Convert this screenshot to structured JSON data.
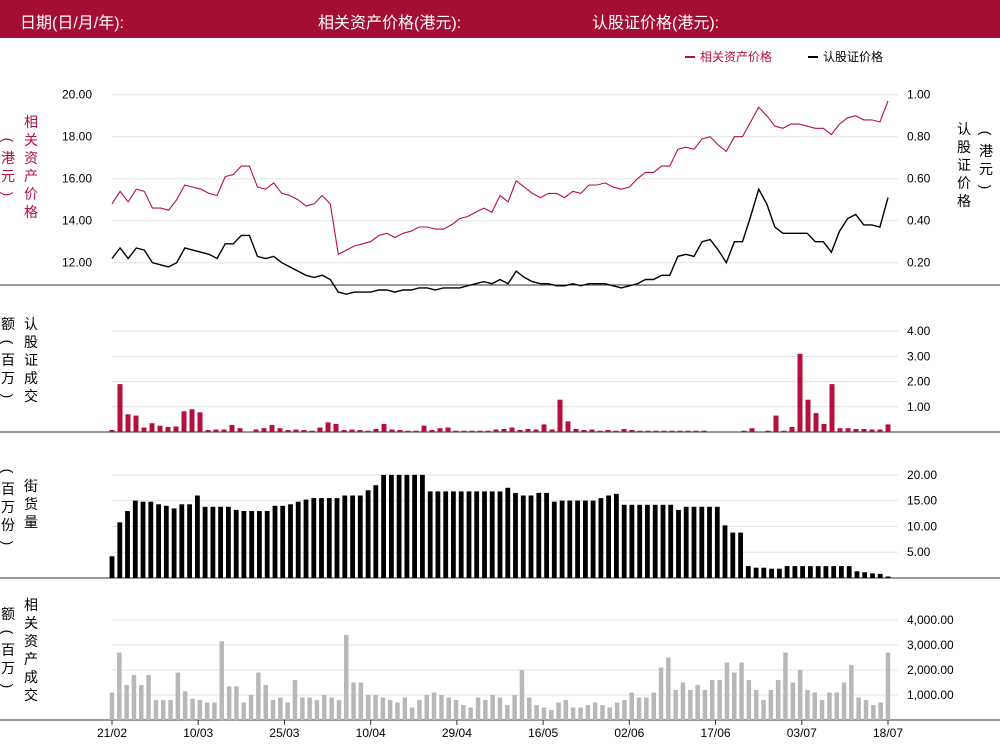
{
  "header": {
    "date_label": "日期(日/月/年):",
    "asset_price_label": "相关资产价格(港元):",
    "warrant_price_label": "认股证价格(港元):"
  },
  "colors": {
    "brand": "#a50d32",
    "asset": "#b5103c",
    "warrant": "#000000",
    "asset_turnover": "#b8b8b8",
    "grid": "#e3e3e3"
  },
  "chart_data": [
    {
      "type": "line",
      "legend_position": "top-right",
      "grid": true,
      "y_left_label": "相关资产价格（港元）",
      "y_right_label": "认股证价格（港元）",
      "y_left_ticks": [
        "12.00",
        "14.00",
        "16.00",
        "18.00",
        "20.00"
      ],
      "y_right_ticks": [
        "0.20",
        "0.40",
        "0.60",
        "0.80",
        "1.00"
      ],
      "y_left_range": [
        10.7,
        20.7
      ],
      "y_right_range": [
        0.07,
        1.07
      ],
      "series": [
        {
          "name": "相关资产价格",
          "axis": "left",
          "values": [
            14.8,
            15.4,
            14.9,
            15.5,
            15.4,
            14.6,
            14.6,
            14.5,
            15.0,
            15.7,
            15.6,
            15.5,
            15.3,
            15.2,
            16.1,
            16.2,
            16.6,
            16.6,
            15.6,
            15.5,
            15.8,
            15.3,
            15.2,
            15.0,
            14.7,
            14.8,
            15.2,
            14.8,
            12.4,
            12.6,
            12.8,
            12.9,
            13.0,
            13.3,
            13.4,
            13.2,
            13.4,
            13.5,
            13.7,
            13.7,
            13.6,
            13.6,
            13.8,
            14.1,
            14.2,
            14.4,
            14.6,
            14.4,
            15.2,
            14.9,
            15.9,
            15.6,
            15.3,
            15.1,
            15.3,
            15.3,
            15.1,
            15.4,
            15.3,
            15.7,
            15.7,
            15.8,
            15.6,
            15.5,
            15.6,
            16.0,
            16.3,
            16.3,
            16.6,
            16.6,
            17.4,
            17.5,
            17.4,
            17.9,
            18.0,
            17.6,
            17.3,
            18.0,
            18.0,
            18.7,
            19.4,
            19.0,
            18.5,
            18.4,
            18.6,
            18.6,
            18.5,
            18.4,
            18.4,
            18.1,
            18.6,
            18.9,
            19.0,
            18.8,
            18.8,
            18.7,
            19.7
          ]
        },
        {
          "name": "认股证价格",
          "axis": "right",
          "values": [
            0.22,
            0.27,
            0.22,
            0.27,
            0.26,
            0.2,
            0.19,
            0.18,
            0.2,
            0.27,
            0.26,
            0.25,
            0.24,
            0.22,
            0.29,
            0.29,
            0.33,
            0.33,
            0.23,
            0.22,
            0.23,
            0.2,
            0.18,
            0.16,
            0.14,
            0.13,
            0.14,
            0.12,
            0.06,
            0.05,
            0.06,
            0.06,
            0.06,
            0.07,
            0.07,
            0.06,
            0.07,
            0.07,
            0.08,
            0.08,
            0.07,
            0.08,
            0.08,
            0.08,
            0.09,
            0.1,
            0.11,
            0.1,
            0.12,
            0.1,
            0.16,
            0.13,
            0.11,
            0.1,
            0.1,
            0.09,
            0.09,
            0.1,
            0.09,
            0.1,
            0.1,
            0.1,
            0.09,
            0.08,
            0.09,
            0.1,
            0.12,
            0.12,
            0.14,
            0.14,
            0.23,
            0.24,
            0.23,
            0.3,
            0.31,
            0.26,
            0.2,
            0.3,
            0.3,
            0.42,
            0.55,
            0.48,
            0.37,
            0.34,
            0.34,
            0.34,
            0.34,
            0.3,
            0.3,
            0.25,
            0.35,
            0.41,
            0.43,
            0.38,
            0.38,
            0.37,
            0.51
          ]
        }
      ]
    },
    {
      "type": "bar",
      "ylabel": "认股证成交额（百万）",
      "y_ticks": [
        "1.00",
        "2.00",
        "3.00",
        "4.00"
      ],
      "y_range": [
        0,
        4.6
      ],
      "values": [
        0.08,
        1.9,
        0.7,
        0.65,
        0.18,
        0.35,
        0.25,
        0.2,
        0.22,
        0.82,
        0.9,
        0.78,
        0.08,
        0.1,
        0.1,
        0.28,
        0.15,
        0,
        0.1,
        0.15,
        0.28,
        0.15,
        0.08,
        0.1,
        0.08,
        0.05,
        0.18,
        0.38,
        0.32,
        0.08,
        0.1,
        0.08,
        0.05,
        0.12,
        0.32,
        0.1,
        0.08,
        0.05,
        0.05,
        0.25,
        0.08,
        0.15,
        0.18,
        0.05,
        0.05,
        0.05,
        0.05,
        0.05,
        0.1,
        0.12,
        0.18,
        0.08,
        0.12,
        0.1,
        0.3,
        0.1,
        1.28,
        0.42,
        0.12,
        0.08,
        0.1,
        0.05,
        0.08,
        0.05,
        0.12,
        0.08,
        0.05,
        0.05,
        0.05,
        0.05,
        0.05,
        0.05,
        0.05,
        0.05,
        0.05,
        0,
        0,
        0,
        0,
        0.05,
        0.15,
        0,
        0.05,
        0.65,
        0.05,
        0.2,
        3.1,
        1.28,
        0.75,
        0.32,
        1.9,
        0.15,
        0.15,
        0.12,
        0.12,
        0.1,
        0.1,
        0.3
      ]
    },
    {
      "type": "bar",
      "ylabel": "街货量（百万份）",
      "y_ticks": [
        "5.00",
        "10.00",
        "15.00",
        "20.00"
      ],
      "y_range": [
        0,
        22.3
      ],
      "values": [
        4.2,
        10.8,
        13.0,
        15.0,
        14.8,
        14.8,
        14.3,
        14.0,
        13.5,
        14.3,
        14.3,
        16.0,
        13.8,
        13.8,
        13.8,
        13.8,
        13.2,
        13.0,
        13.0,
        13.0,
        13.0,
        14.0,
        14.0,
        14.3,
        14.8,
        15.2,
        15.5,
        15.5,
        15.5,
        15.5,
        16.0,
        16.0,
        16.0,
        17.0,
        18.0,
        20.0,
        20.0,
        20.0,
        20.0,
        20.0,
        20.0,
        16.8,
        16.8,
        16.8,
        16.8,
        16.8,
        16.8,
        16.8,
        16.8,
        16.8,
        16.8,
        17.5,
        16.5,
        16.0,
        16.0,
        16.5,
        16.5,
        14.8,
        15.0,
        15.0,
        15.0,
        15.0,
        15.0,
        15.5,
        16.0,
        16.3,
        14.2,
        14.2,
        14.2,
        14.2,
        14.2,
        14.2,
        14.2,
        13.2,
        13.8,
        13.8,
        13.8,
        13.8,
        13.8,
        10.2,
        8.8,
        8.8,
        2.3,
        2.0,
        2.0,
        1.8,
        1.8,
        2.3,
        2.3,
        2.3,
        2.3,
        2.3,
        2.3,
        2.3,
        2.3,
        2.3,
        1.3,
        1.1,
        0.9,
        0.8,
        0.3
      ]
    },
    {
      "type": "bar",
      "ylabel": "相关资产成交额（百万）",
      "y_ticks": [
        "1,000.00",
        "2,000.00",
        "3,000.00",
        "4,000.00"
      ],
      "y_range": [
        0,
        4600
      ],
      "values": [
        1100,
        2700,
        1400,
        1800,
        1400,
        1800,
        800,
        800,
        800,
        1900,
        1150,
        850,
        800,
        700,
        700,
        3150,
        1350,
        1350,
        700,
        1000,
        1900,
        1400,
        800,
        900,
        700,
        1600,
        900,
        900,
        800,
        1000,
        900,
        800,
        3400,
        1500,
        1500,
        1000,
        1000,
        900,
        800,
        700,
        900,
        500,
        800,
        1000,
        1100,
        1000,
        900,
        800,
        600,
        500,
        900,
        800,
        1000,
        900,
        600,
        1000,
        2000,
        900,
        600,
        500,
        400,
        700,
        800,
        500,
        500,
        600,
        700,
        600,
        500,
        700,
        800,
        1100,
        900,
        900,
        1100,
        2100,
        2500,
        1200,
        1500,
        1200,
        1400,
        1200,
        1600,
        1600,
        2300,
        1900,
        2300,
        1600,
        1200,
        800,
        1200,
        1600,
        2700,
        1500,
        2000,
        1200,
        1100,
        800,
        1100,
        1100,
        1500,
        2200,
        900,
        800,
        600,
        700,
        2700
      ]
    },
    {
      "type": "table",
      "x_ticks": [
        "21/02",
        "10/03",
        "25/03",
        "10/04",
        "29/04",
        "16/05",
        "02/06",
        "17/06",
        "03/07",
        "18/07"
      ]
    }
  ]
}
